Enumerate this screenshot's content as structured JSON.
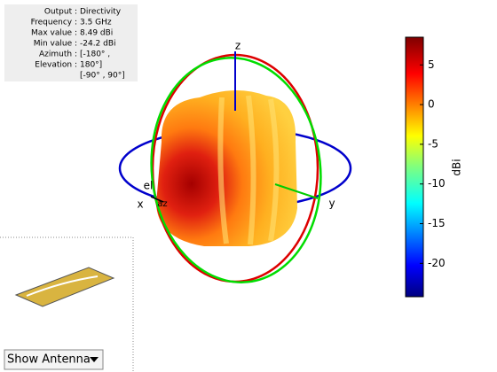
{
  "info_panel": {
    "rows": [
      {
        "label": "Output :",
        "value": "Directivity"
      },
      {
        "label": "Frequency :",
        "value": "3.5 GHz"
      },
      {
        "label": "Max value :",
        "value": "8.49 dBi"
      },
      {
        "label": "Min value :",
        "value": "-24.2 dBi"
      },
      {
        "label": "Azimuth :",
        "value": "[-180° ,"
      },
      {
        "label": "Elevation :",
        "value": "180°]"
      }
    ],
    "extra": "[-90° , 90°]"
  },
  "axes": {
    "x": "x",
    "y": "y",
    "z": "z",
    "el": "el",
    "az": "az"
  },
  "colorbar": {
    "label": "dBi",
    "lim": [
      -24.2,
      8.49
    ],
    "ticks": [
      5,
      0,
      -5,
      -10,
      -15,
      -20
    ]
  },
  "dropdown": {
    "label": "Show Antenna"
  }
}
